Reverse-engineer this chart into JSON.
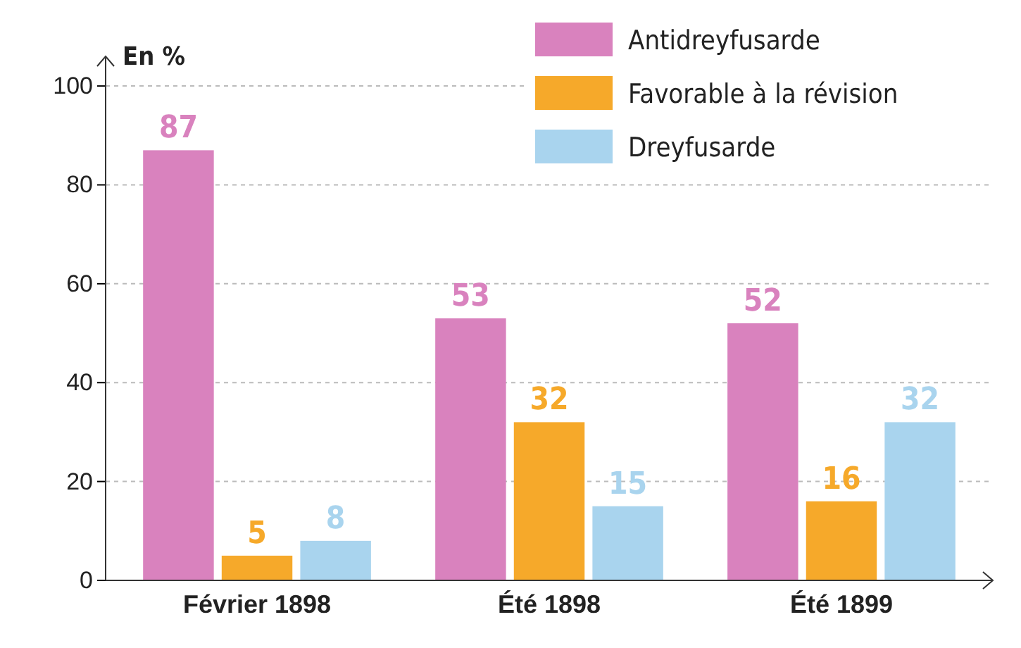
{
  "chart_data": {
    "type": "bar",
    "ylabel": "En %",
    "categories": [
      "Février 1898",
      "Été 1898",
      "Été 1899"
    ],
    "series": [
      {
        "name": "Antidreyfusarde",
        "color": "#d982be",
        "values": [
          87,
          53,
          52
        ]
      },
      {
        "name": "Favorable à la révision",
        "color": "#f6a92a",
        "values": [
          5,
          32,
          16
        ]
      },
      {
        "name": "Dreyfusarde",
        "color": "#a9d4ee",
        "values": [
          8,
          15,
          32
        ]
      }
    ],
    "ylim": [
      0,
      106
    ],
    "yticks": [
      0,
      20,
      40,
      60,
      80,
      100
    ],
    "grid": "y",
    "legend": "top right",
    "data_labels": true
  }
}
